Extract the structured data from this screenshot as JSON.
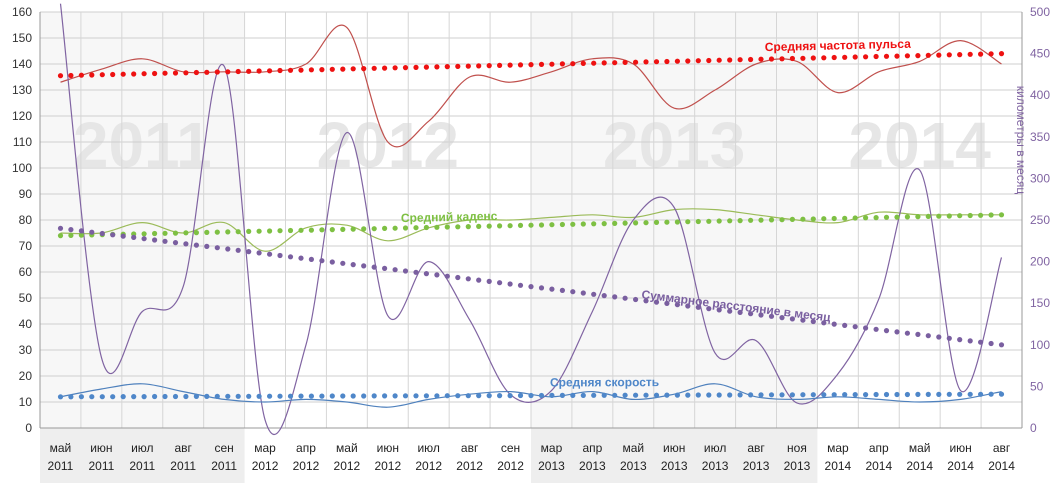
{
  "chart_data": {
    "type": "line",
    "categories": [
      [
        "май",
        "2011"
      ],
      [
        "июн",
        "2011"
      ],
      [
        "июл",
        "2011"
      ],
      [
        "авг",
        "2011"
      ],
      [
        "сен",
        "2011"
      ],
      [
        "мар",
        "2012"
      ],
      [
        "апр",
        "2012"
      ],
      [
        "май",
        "2012"
      ],
      [
        "июн",
        "2012"
      ],
      [
        "июл",
        "2012"
      ],
      [
        "авг",
        "2012"
      ],
      [
        "сен",
        "2012"
      ],
      [
        "мар",
        "2013"
      ],
      [
        "апр",
        "2013"
      ],
      [
        "май",
        "2013"
      ],
      [
        "июн",
        "2013"
      ],
      [
        "июл",
        "2013"
      ],
      [
        "авг",
        "2013"
      ],
      [
        "ноя",
        "2013"
      ],
      [
        "мар",
        "2014"
      ],
      [
        "апр",
        "2014"
      ],
      [
        "май",
        "2014"
      ],
      [
        "июн",
        "2014"
      ],
      [
        "авг",
        "2014"
      ]
    ],
    "year_watermarks": [
      "2011",
      "2012",
      "2013",
      "2014"
    ],
    "y_left": {
      "ylim": [
        0,
        160
      ],
      "ticks": [
        0,
        10,
        20,
        30,
        40,
        50,
        60,
        70,
        80,
        90,
        100,
        110,
        120,
        130,
        140,
        150,
        160
      ]
    },
    "y_right": {
      "label": "километры в месяц",
      "ylim": [
        0,
        500
      ],
      "ticks": [
        0,
        50,
        100,
        150,
        200,
        250,
        300,
        350,
        400,
        450,
        500
      ]
    },
    "grid": true,
    "series": [
      {
        "name": "Средняя частота пульса",
        "axis": "left",
        "color": "#c0504d",
        "label_color": "#ee1111",
        "values": [
          133,
          138,
          142,
          137,
          137,
          137,
          140,
          154,
          110,
          118,
          135,
          133,
          137,
          142,
          140,
          123,
          130,
          140,
          141,
          129,
          137,
          141,
          149,
          140
        ],
        "trend": [
          135.5,
          144
        ]
      },
      {
        "name": "Средний каденс",
        "axis": "left",
        "color": "#9bbb59",
        "label_color": "#7ec043",
        "values": [
          75,
          75,
          79,
          75,
          79,
          68,
          77,
          78,
          72,
          77,
          80,
          80,
          81,
          82,
          81,
          84,
          84,
          82,
          80,
          79,
          83,
          82,
          82,
          82
        ],
        "trend": [
          74,
          82
        ]
      },
      {
        "name": "Суммарное расстояние в месяц",
        "axis": "right",
        "color": "#8064a2",
        "label_color": "#7a5fa0",
        "values": [
          510,
          85,
          140,
          170,
          435,
          10,
          100,
          355,
          135,
          200,
          130,
          40,
          45,
          140,
          250,
          265,
          90,
          105,
          30,
          65,
          155,
          310,
          45,
          205
        ],
        "trend": [
          240,
          100
        ]
      },
      {
        "name": "Средняя скорость",
        "axis": "left",
        "color": "#4f81bd",
        "label_color": "#4f87c9",
        "values": [
          12,
          15,
          17,
          14,
          11,
          10,
          11,
          10,
          8,
          11,
          13,
          14,
          12,
          14,
          11,
          13,
          17,
          12,
          11,
          12,
          11,
          10,
          11,
          14
        ],
        "trend": [
          12,
          13
        ]
      }
    ]
  }
}
